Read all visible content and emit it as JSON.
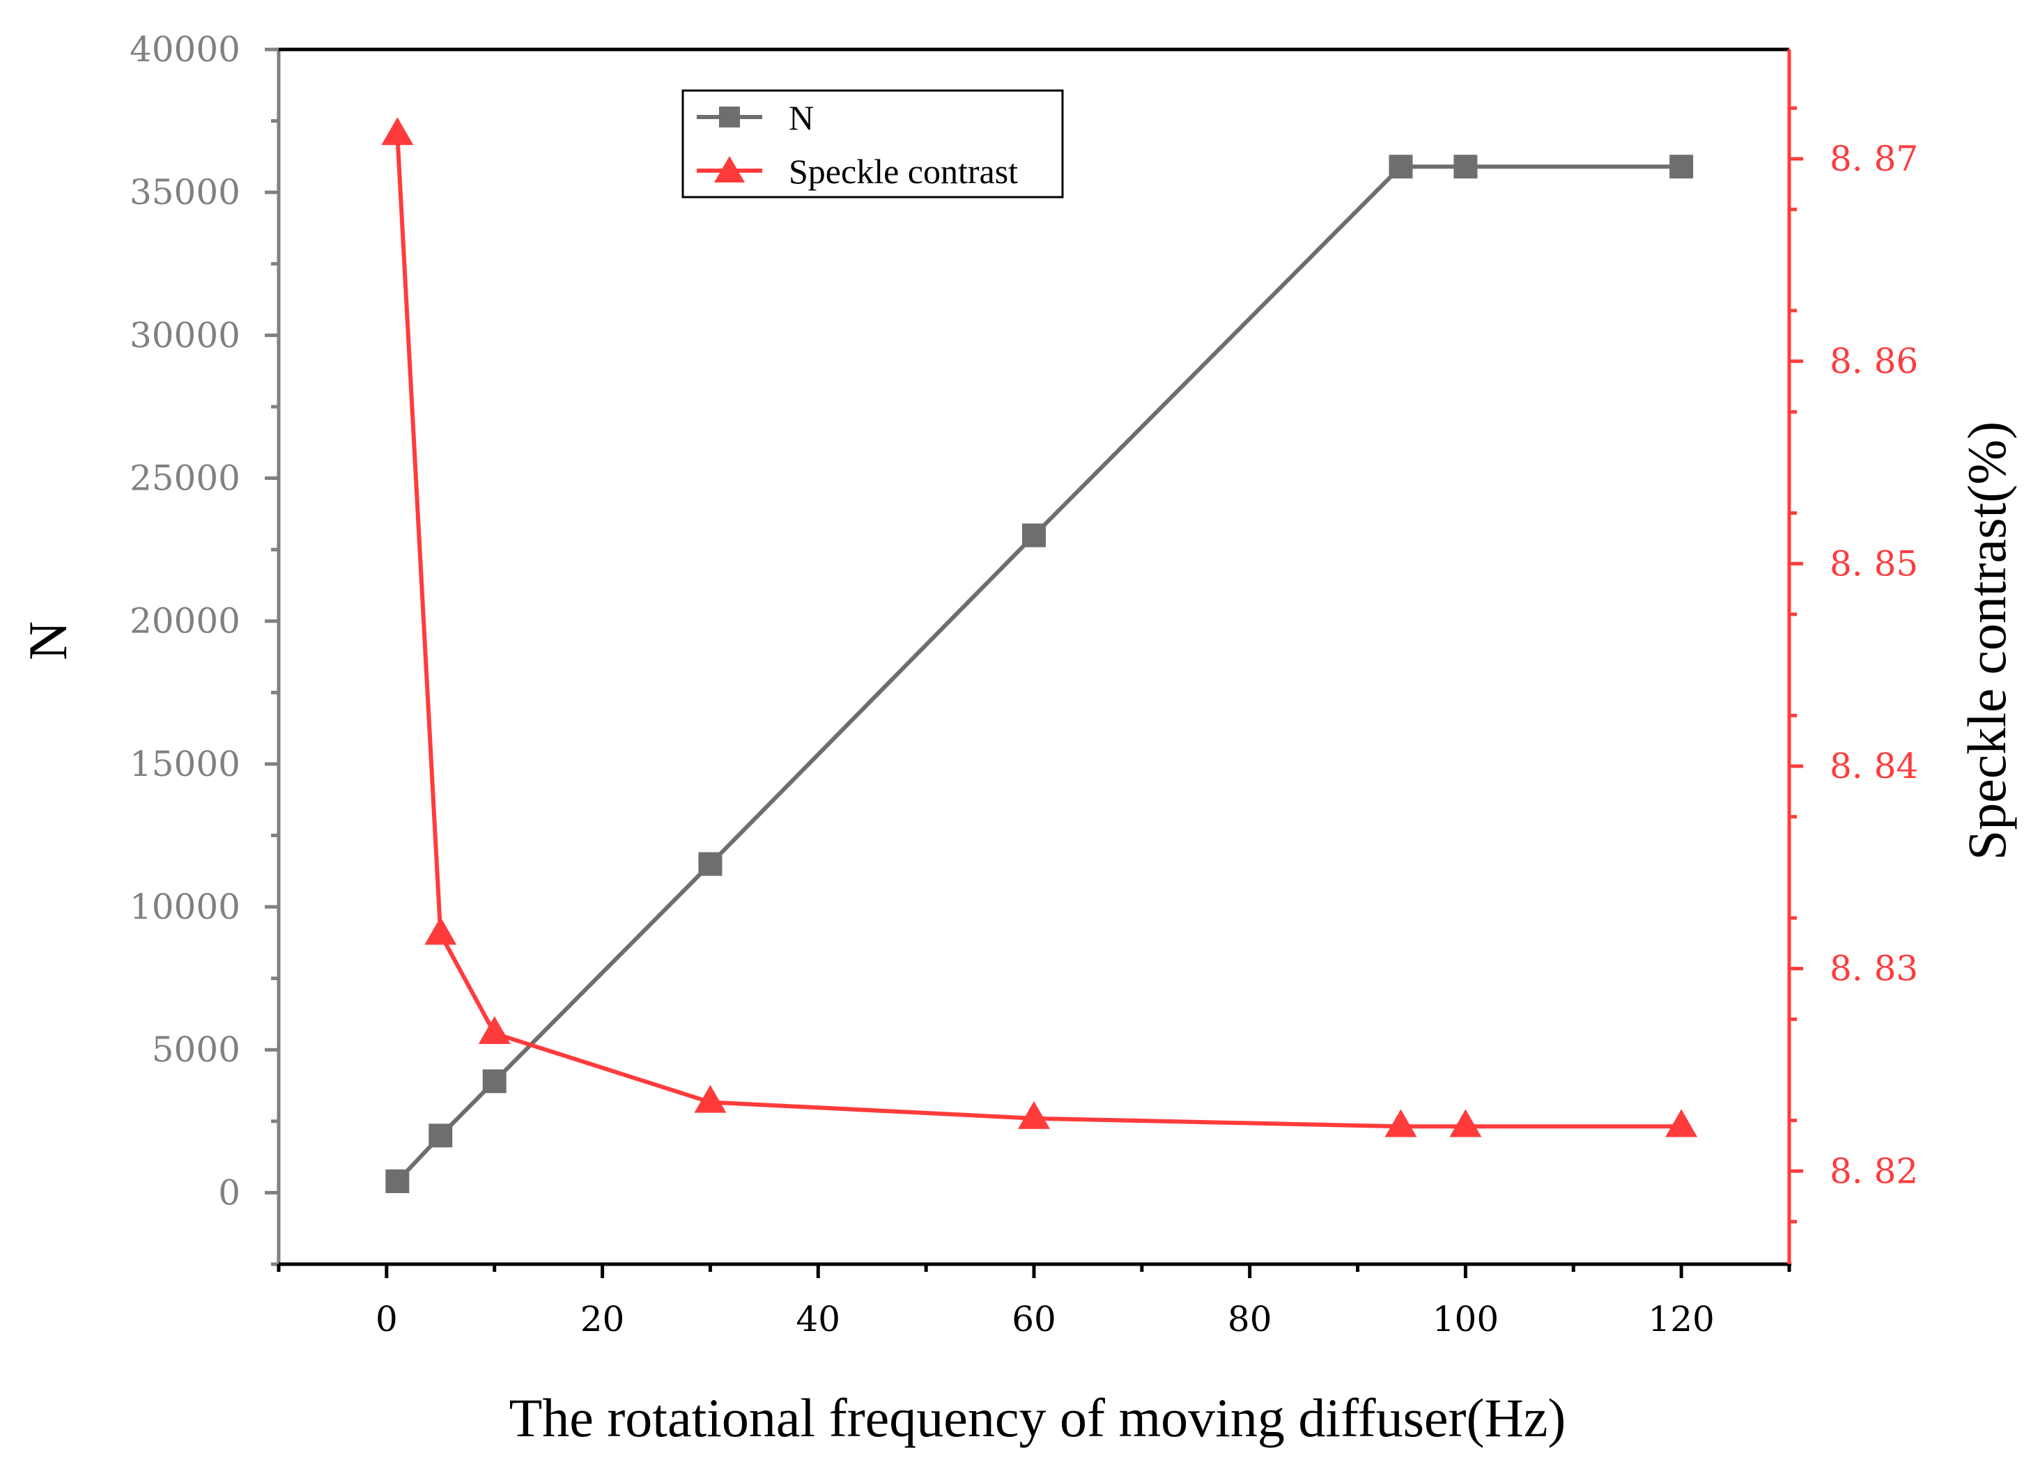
{
  "chart_data": {
    "type": "line",
    "title": "",
    "xlabel": "The rotational frequency of moving diffuser(Hz)",
    "ylabel": "N",
    "y2label": "Speckle contrast(%)",
    "xlim": [
      -10,
      130
    ],
    "ylim": [
      -2500,
      40000
    ],
    "y2lim": [
      8.8154,
      8.8754
    ],
    "xticks": [
      0,
      20,
      40,
      60,
      80,
      100,
      120
    ],
    "xtick_labels": [
      "0",
      "20",
      "40",
      "60",
      "80",
      "100",
      "120"
    ],
    "yticks": [
      0,
      5000,
      10000,
      15000,
      20000,
      25000,
      30000,
      35000,
      40000
    ],
    "ytick_labels": [
      "0",
      "5000",
      "10000",
      "15000",
      "20000",
      "25000",
      "30000",
      "35000",
      "40000"
    ],
    "y2ticks": [
      8.82,
      8.83,
      8.84,
      8.85,
      8.86,
      8.87
    ],
    "y2tick_labels": [
      "8. 82",
      "8. 83",
      "8. 84",
      "8. 85",
      "8. 86",
      "8. 87"
    ],
    "grid": false,
    "legend_position": "top-center",
    "series": [
      {
        "name": "N",
        "axis": "left",
        "marker": "square",
        "color": "#6e6e6e",
        "x": [
          1,
          5,
          10,
          30,
          60,
          94,
          100,
          120
        ],
        "values": [
          400,
          2000,
          3900,
          11500,
          23000,
          35900,
          35900,
          35900
        ]
      },
      {
        "name": "Speckle contrast",
        "axis": "right",
        "marker": "triangle",
        "color": "#ff3b3b",
        "x": [
          1,
          5,
          10,
          30,
          60,
          94,
          100,
          120
        ],
        "values": [
          8.8712,
          8.8317,
          8.8268,
          8.8234,
          8.8226,
          8.8222,
          8.8222,
          8.8222
        ]
      }
    ]
  },
  "colors": {
    "left_axis": "#808080",
    "right_axis": "#ff3b3b",
    "bottom_axis": "#000000"
  }
}
